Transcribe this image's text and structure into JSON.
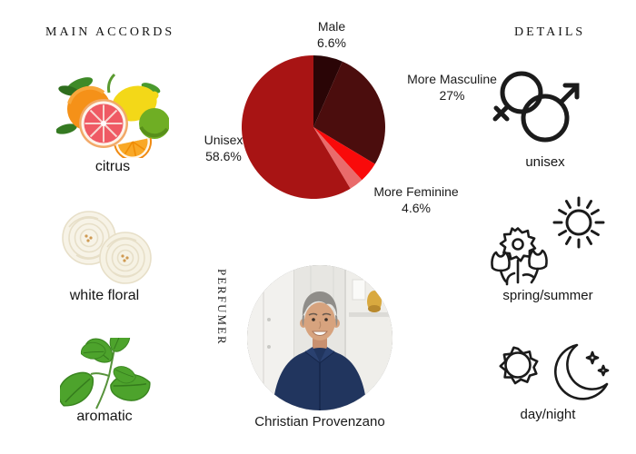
{
  "accords": {
    "heading": "MAIN ACCORDS",
    "items": [
      {
        "label": "citrus",
        "icon": "citrus-fruits-image"
      },
      {
        "label": "white floral",
        "icon": "white-roses-image"
      },
      {
        "label": "aromatic",
        "icon": "mint-sprig-image"
      }
    ]
  },
  "chart_data": {
    "type": "pie",
    "title": "",
    "unit": "%",
    "direction": "clockwise",
    "start_angle_deg": 0,
    "legend_position": "outside-labels",
    "slices": [
      {
        "label": "Male",
        "pct_text": "6.6%",
        "value": 6.6,
        "color": "#2a0506"
      },
      {
        "label": "More Masculine",
        "pct_text": "27%",
        "value": 27,
        "color": "#4b0d0d"
      },
      {
        "label": "More Feminine",
        "pct_text": "4.6%",
        "value": 4.6,
        "color": "#f90a0a"
      },
      {
        "label": "",
        "pct_text": "",
        "value": 3.2,
        "color": "#e96b6b"
      },
      {
        "label": "Unisex",
        "pct_text": "58.6%",
        "value": 58.6,
        "color": "#a81414"
      }
    ]
  },
  "perfumer": {
    "heading": "PERFUMER",
    "name": "Christian Provenzano",
    "photo": "christian-provenzano-portrait"
  },
  "details": {
    "heading": "DETAILS",
    "items": [
      {
        "label": "unisex",
        "icon": "gender-unisex-icon"
      },
      {
        "label": "spring/summer",
        "icon": "spring-summer-icon"
      },
      {
        "label": "day/night",
        "icon": "day-night-icon"
      }
    ]
  }
}
